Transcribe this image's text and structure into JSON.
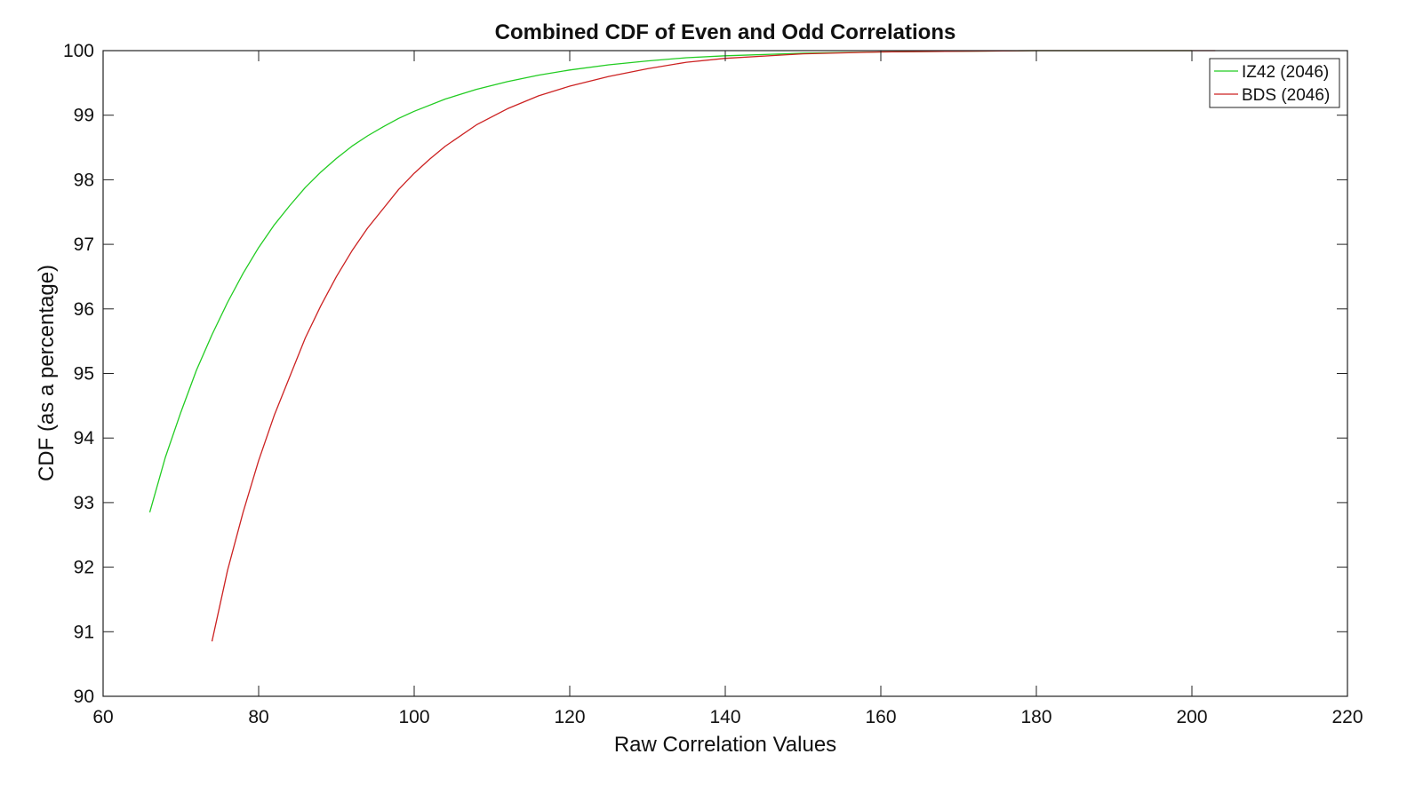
{
  "chart_data": {
    "type": "line",
    "title": "Combined CDF of Even and Odd Correlations",
    "xlabel": "Raw Correlation Values",
    "ylabel": "CDF (as a percentage)",
    "xlim": [
      60,
      220
    ],
    "ylim": [
      90,
      100
    ],
    "x_ticks": [
      60,
      80,
      100,
      120,
      140,
      160,
      180,
      200,
      220
    ],
    "y_ticks": [
      90,
      91,
      92,
      93,
      94,
      95,
      96,
      97,
      98,
      99,
      100
    ],
    "grid": false,
    "legend_position": "top-right",
    "series": [
      {
        "name": "IZ42 (2046)",
        "color": "#22cc22",
        "x": [
          66,
          68,
          70,
          72,
          74,
          76,
          78,
          80,
          82,
          84,
          86,
          88,
          90,
          92,
          94,
          96,
          98,
          100,
          104,
          108,
          112,
          116,
          120,
          125,
          130,
          135,
          140,
          150,
          160,
          180,
          200
        ],
        "y": [
          92.85,
          93.7,
          94.4,
          95.05,
          95.6,
          96.1,
          96.55,
          96.95,
          97.3,
          97.6,
          97.88,
          98.12,
          98.33,
          98.52,
          98.68,
          98.82,
          98.95,
          99.06,
          99.25,
          99.4,
          99.52,
          99.62,
          99.7,
          99.78,
          99.84,
          99.89,
          99.92,
          99.96,
          99.98,
          100.0,
          100.0
        ]
      },
      {
        "name": "BDS (2046)",
        "color": "#cc2222",
        "x": [
          74,
          76,
          78,
          80,
          82,
          84,
          86,
          88,
          90,
          92,
          94,
          96,
          98,
          100,
          102,
          104,
          108,
          112,
          116,
          120,
          125,
          130,
          135,
          140,
          150,
          160,
          180,
          200,
          203
        ],
        "y": [
          90.85,
          91.95,
          92.85,
          93.65,
          94.35,
          94.95,
          95.55,
          96.05,
          96.5,
          96.9,
          97.25,
          97.55,
          97.85,
          98.1,
          98.32,
          98.52,
          98.85,
          99.1,
          99.3,
          99.45,
          99.6,
          99.72,
          99.82,
          99.88,
          99.95,
          99.98,
          100.0,
          100.0,
          100.0
        ]
      }
    ]
  }
}
